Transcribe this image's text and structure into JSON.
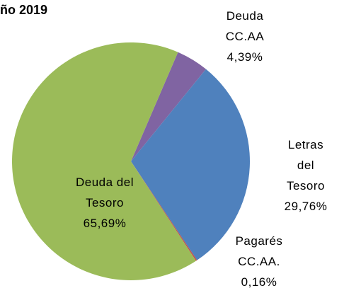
{
  "chart_data": {
    "type": "pie",
    "title": "ño 2019",
    "categories": [
      "Deuda\nCC.AA",
      "Letras del\nTesoro",
      "Pagarés\nCC.AA.",
      "Deuda del\nTesoro"
    ],
    "values": [
      4.39,
      29.76,
      0.16,
      65.69
    ],
    "value_labels": [
      "4,39%",
      "29,76%",
      "0,16%",
      "65,69%"
    ],
    "colors": [
      "#8064a2",
      "#4f81bd",
      "#c0504d",
      "#9bbb59"
    ]
  }
}
